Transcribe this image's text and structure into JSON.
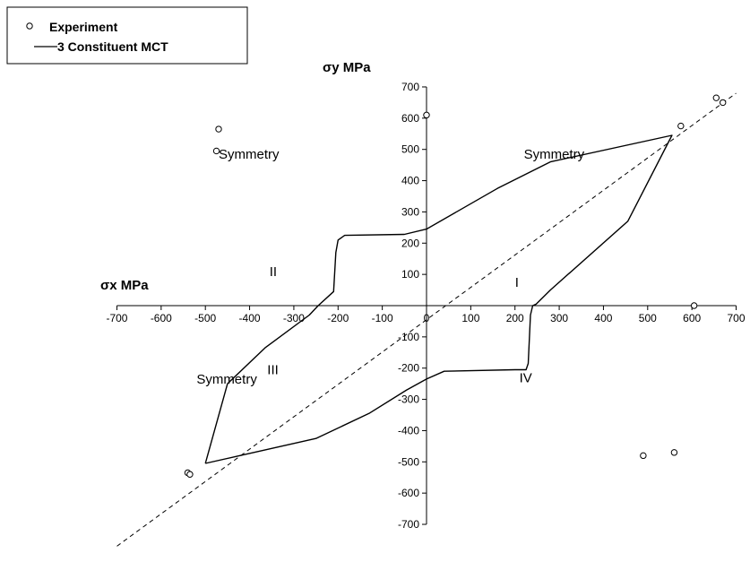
{
  "chart_data": {
    "type": "scatter",
    "xlabel": "σx MPa",
    "ylabel": "σy MPa",
    "xlim": [
      -700,
      700
    ],
    "ylim": [
      -700,
      700
    ],
    "x_ticks": [
      -700,
      -600,
      -500,
      -400,
      -300,
      -200,
      -100,
      0,
      100,
      200,
      300,
      400,
      500,
      600,
      700
    ],
    "y_ticks": [
      -700,
      -600,
      -500,
      -400,
      -300,
      -200,
      -100,
      0,
      100,
      200,
      300,
      400,
      500,
      600,
      700
    ],
    "grid": false,
    "legend": {
      "position": "top-left",
      "entries": [
        {
          "label": "Experiment",
          "marker": "circle"
        },
        {
          "label": "3 Constituent MCT",
          "marker": "line"
        }
      ]
    },
    "series": [
      {
        "name": "Experiment",
        "style": "open-circles",
        "points": [
          [
            -470,
            565
          ],
          [
            -475,
            495
          ],
          [
            0,
            610
          ],
          [
            575,
            575
          ],
          [
            655,
            665
          ],
          [
            670,
            650
          ],
          [
            605,
            0
          ],
          [
            490,
            -480
          ],
          [
            560,
            -470
          ],
          [
            -540,
            -535
          ],
          [
            -535,
            -540
          ]
        ]
      },
      {
        "name": "3 Constituent MCT",
        "style": "solid",
        "points": [
          [
            -500,
            -505
          ],
          [
            -250,
            -425
          ],
          [
            -130,
            -345
          ],
          [
            -45,
            -270
          ],
          [
            0,
            -235
          ],
          [
            40,
            -210
          ],
          [
            200,
            -205
          ],
          [
            225,
            -205
          ],
          [
            230,
            -185
          ],
          [
            235,
            -30
          ],
          [
            240,
            0
          ],
          [
            248,
            5
          ],
          [
            280,
            50
          ],
          [
            455,
            270
          ],
          [
            555,
            545
          ],
          [
            280,
            460
          ],
          [
            160,
            375
          ],
          [
            0,
            245
          ],
          [
            -50,
            228
          ],
          [
            -185,
            225
          ],
          [
            -200,
            210
          ],
          [
            -205,
            170
          ],
          [
            -210,
            45
          ],
          [
            -245,
            0
          ],
          [
            -265,
            -30
          ],
          [
            -365,
            -135
          ],
          [
            -450,
            -250
          ],
          [
            -500,
            -505
          ]
        ]
      },
      {
        "name": "",
        "style": "dashed",
        "points": [
          [
            -700,
            -770
          ],
          [
            700,
            680
          ]
        ]
      }
    ],
    "annotations": [
      {
        "text": "Symmetry",
        "x": -470,
        "y": 470
      },
      {
        "text": "Symmetry",
        "x": 220,
        "y": 470
      },
      {
        "text": "Symmetry",
        "x": -520,
        "y": -250
      },
      {
        "text": "II",
        "x": -355,
        "y": 95
      },
      {
        "text": "I",
        "x": 200,
        "y": 60
      },
      {
        "text": "III",
        "x": -360,
        "y": -220
      },
      {
        "text": "IV",
        "x": 210,
        "y": -245
      }
    ]
  }
}
